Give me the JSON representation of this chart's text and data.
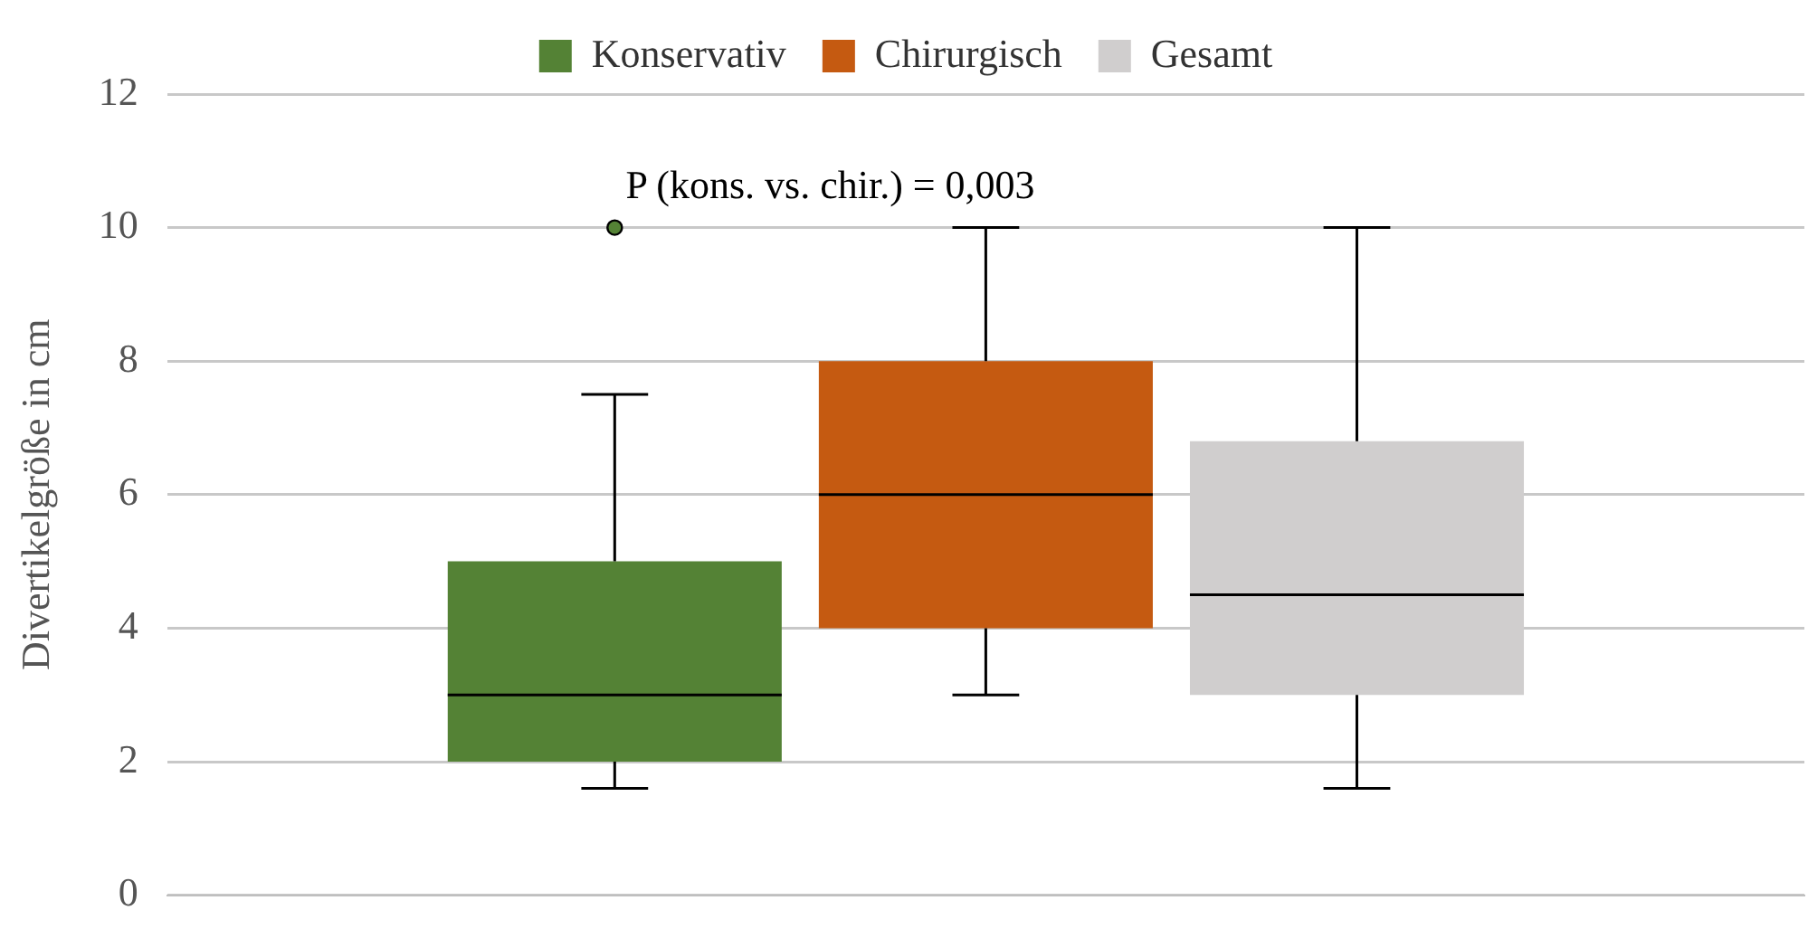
{
  "chart_data": {
    "type": "box",
    "ylabel": "Divertikelgröße in cm",
    "categories": [
      null
    ],
    "series": [
      {
        "name": "Konservativ",
        "color": "#548235",
        "boxes": [
          {
            "low": 1.6,
            "q1": 2,
            "median": 3,
            "q3": 5,
            "high": 7.5,
            "outliers": [
              10
            ]
          }
        ]
      },
      {
        "name": "Chirurgisch",
        "color": "#c55a11",
        "boxes": [
          {
            "low": 3,
            "q1": 4,
            "median": 6,
            "q3": 8,
            "high": 10
          }
        ]
      },
      {
        "name": "Gesamt",
        "color": "#d0cece",
        "boxes": [
          {
            "low": 1.6,
            "q1": 3,
            "median": 4.5,
            "q3": 6.8,
            "high": 10
          }
        ]
      }
    ],
    "annotations": [
      "P (kons. vs. chir.) = 0,003"
    ],
    "ylim": [
      0,
      12
    ],
    "yticks": [
      0,
      2,
      4,
      6,
      8,
      10,
      12
    ],
    "grid": "y",
    "legend": "top"
  }
}
